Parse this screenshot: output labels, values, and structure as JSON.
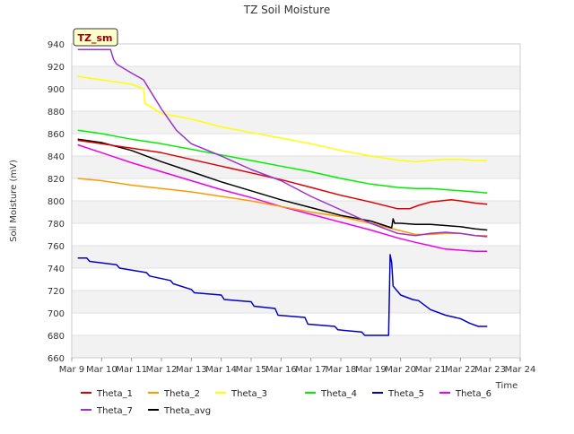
{
  "chart_data": {
    "type": "line",
    "title": "TZ Soil Moisture",
    "xlabel": "Time",
    "ylabel": "Soil Moisture (mV)",
    "badge": "TZ_sm",
    "ylim": [
      660,
      940
    ],
    "xlim": [
      "2024-03-09",
      "2024-03-24"
    ],
    "yticks": [
      660,
      680,
      700,
      720,
      740,
      760,
      780,
      800,
      820,
      840,
      860,
      880,
      900,
      920,
      940
    ],
    "xticks": [
      "Mar 9",
      "Mar 10",
      "Mar 11",
      "Mar 12",
      "Mar 13",
      "Mar 14",
      "Mar 15",
      "Mar 16",
      "Mar 17",
      "Mar 18",
      "Mar 19",
      "Mar 20",
      "Mar 21",
      "Mar 22",
      "Mar 23",
      "Mar 24"
    ],
    "grid": "horizontal bands",
    "legend_position": "bottom",
    "series": [
      {
        "name": "Theta_1",
        "color": "#dd0000",
        "x": [
          0.2,
          1,
          2,
          3,
          4,
          5,
          6,
          7,
          8,
          9,
          10,
          10.9,
          11.3,
          11.6,
          12,
          12.7,
          13,
          13.5,
          13.9
        ],
        "y": [
          854,
          851,
          847,
          843,
          837,
          831,
          825,
          819,
          812,
          805,
          799,
          793,
          793,
          796,
          799,
          801,
          800,
          798,
          797
        ]
      },
      {
        "name": "Theta_2",
        "color": "#ff9900",
        "x": [
          0.2,
          1,
          2,
          3,
          4,
          5,
          6,
          7,
          8,
          9,
          10,
          10.9,
          11.5,
          12,
          12.5,
          13,
          13.5,
          13.9
        ],
        "y": [
          820,
          818,
          814,
          811,
          808,
          804,
          800,
          795,
          790,
          786,
          780,
          774,
          770,
          770,
          771,
          771,
          769,
          769
        ]
      },
      {
        "name": "Theta_3",
        "color": "#ffff00",
        "x": [
          0.2,
          1,
          1.5,
          2,
          2.4,
          2.45,
          3,
          4,
          5,
          6,
          7,
          8,
          9,
          10,
          10.5,
          11,
          11.5,
          12,
          12.5,
          13,
          13.5,
          13.9
        ],
        "y": [
          911,
          908,
          906,
          904,
          900,
          887,
          878,
          873,
          866,
          861,
          856,
          851,
          845,
          840,
          838,
          836,
          835,
          836,
          837,
          837,
          836,
          836
        ]
      },
      {
        "name": "Theta_4",
        "color": "#00ee00",
        "x": [
          0.2,
          1,
          2,
          3,
          4,
          5,
          6,
          7,
          8,
          9,
          10,
          10.9,
          11.5,
          12,
          12.5,
          13,
          13.5,
          13.9
        ],
        "y": [
          863,
          860,
          855,
          851,
          846,
          841,
          836,
          831,
          826,
          820,
          815,
          812,
          811,
          811,
          810,
          809,
          808,
          807
        ]
      },
      {
        "name": "Theta_5",
        "color": "#0000cc",
        "x": [
          0.2,
          0.5,
          0.6,
          1.5,
          1.6,
          2.5,
          2.6,
          3.3,
          3.4,
          4,
          4.1,
          5,
          5.1,
          6,
          6.1,
          6.8,
          6.9,
          7.8,
          7.9,
          8.8,
          8.9,
          9.7,
          9.8,
          10.6,
          10.65,
          10.7,
          10.75,
          11,
          11.4,
          11.6,
          12,
          12.5,
          13,
          13.3,
          13.6,
          13.9
        ],
        "y": [
          749,
          749,
          746,
          743,
          740,
          736,
          733,
          729,
          726,
          721,
          718,
          716,
          712,
          710,
          706,
          704,
          698,
          696,
          690,
          688,
          685,
          683,
          680,
          680,
          752,
          745,
          724,
          716,
          712,
          711,
          703,
          698,
          695,
          691,
          688,
          688
        ]
      },
      {
        "name": "Theta_6",
        "color": "#ee00ee",
        "x": [
          0.2,
          1,
          2,
          3,
          4,
          5,
          6,
          7,
          8,
          9,
          10,
          10.9,
          11.5,
          12,
          12.5,
          13,
          13.5,
          13.9
        ],
        "y": [
          850,
          843,
          834,
          826,
          818,
          810,
          803,
          795,
          788,
          781,
          774,
          767,
          763,
          760,
          757,
          756,
          755,
          755
        ]
      },
      {
        "name": "Theta_7",
        "color": "#9933cc",
        "x": [
          0.2,
          1.3,
          1.4,
          1.5,
          2,
          2.4,
          2.7,
          3,
          3.5,
          4,
          5,
          6,
          7,
          8,
          9,
          10,
          10.9,
          11.5,
          12,
          12.5,
          13,
          13.5,
          13.9
        ],
        "y": [
          935,
          935,
          926,
          922,
          914,
          908,
          895,
          882,
          863,
          851,
          840,
          828,
          818,
          804,
          792,
          780,
          771,
          769,
          771,
          772,
          771,
          769,
          768
        ]
      },
      {
        "name": "Theta_avg",
        "color": "#000000",
        "x": [
          0.2,
          1,
          2,
          3,
          4,
          5,
          6,
          7,
          8,
          9,
          10,
          10.7,
          10.75,
          10.8,
          11,
          11.5,
          12,
          12.5,
          13,
          13.5,
          13.9
        ],
        "y": [
          855,
          852,
          845,
          835,
          826,
          817,
          809,
          801,
          794,
          787,
          782,
          776,
          784,
          780,
          780,
          779,
          779,
          778,
          777,
          775,
          774
        ]
      }
    ],
    "legend_rows": [
      [
        "Theta_1",
        "Theta_2",
        "Theta_3",
        "Theta_4",
        "Theta_5",
        "Theta_6"
      ],
      [
        "Theta_7",
        "Theta_avg"
      ]
    ]
  }
}
